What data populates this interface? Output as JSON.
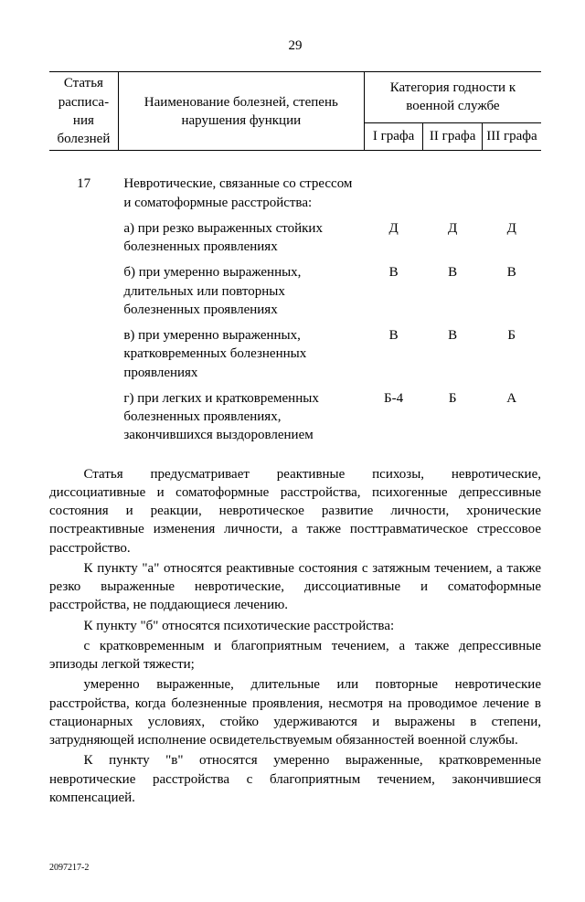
{
  "page_number": "29",
  "header": {
    "col_article": "Статья расписа-ния болезней",
    "col_name": "Наименование болезней, степень нарушения функции",
    "col_category": "Категория годности к военной службе",
    "sub_cols": [
      "I графа",
      "II графа",
      "III графа"
    ]
  },
  "article_number": "17",
  "article_title": "Невротические, связанные со стрессом и соматоформные расстройства:",
  "items": [
    {
      "label": "а) при резко выраженных стойких болезненных проявлениях",
      "vals": [
        "Д",
        "Д",
        "Д"
      ]
    },
    {
      "label": "б) при умеренно выраженных, длительных или повторных болезненных проявлениях",
      "vals": [
        "В",
        "В",
        "В"
      ]
    },
    {
      "label": "в) при умеренно выраженных, кратковременных болезненных проявлениях",
      "vals": [
        "В",
        "В",
        "Б"
      ]
    },
    {
      "label": "г) при легких и кратковременных болезненных проявлениях, закончившихся выздоровлением",
      "vals": [
        "Б-4",
        "Б",
        "А"
      ]
    }
  ],
  "paragraphs": [
    "Статья предусматривает реактивные психозы, невротические, диссоциативные и соматоформные расстройства, психогенные депрессивные состояния и реакции, невротическое развитие личности, хронические постреактивные изменения личности, а также посттравматическое стрессовое расстройство.",
    "К пункту \"а\" относятся реактивные состояния с затяжным течением, а также резко выраженные невротические, диссоциативные и соматоформные расстройства, не поддающиеся лечению.",
    "К пункту \"б\" относятся психотические расстройства:",
    "с кратковременным и благоприятным течением, а также депрессивные эпизоды легкой тяжести;",
    "умеренно выраженные, длительные или повторные невротические расстройства, когда болезненные проявления, несмотря на проводимое лечение в стационарных условиях, стойко удерживаются и выражены в степени, затрудняющей исполнение освидетельствуемым обязанностей военной службы.",
    "К пункту \"в\" относятся умеренно выраженные, кратковременные невротические расстройства с благоприятным течением, закончившиеся компенсацией."
  ],
  "footer_code": "2097217-2"
}
